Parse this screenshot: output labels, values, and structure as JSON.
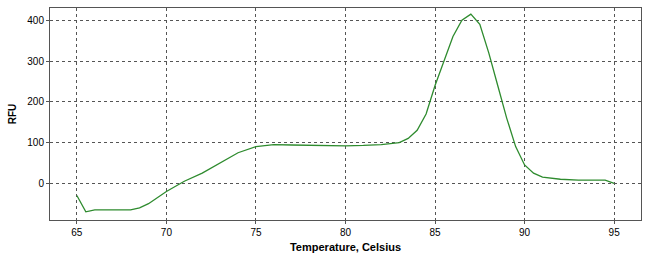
{
  "chart_data": {
    "type": "line",
    "x_label": "Temperature, Celsius",
    "y_label": "RFU",
    "color": "#2e8b2e",
    "x": [
      65,
      65.5,
      66,
      67,
      68,
      68.5,
      69,
      70,
      71,
      72,
      73,
      74,
      75,
      76,
      77,
      78,
      79,
      80,
      81,
      82,
      83,
      83.5,
      84,
      84.5,
      85,
      85.5,
      86,
      86.5,
      87,
      87.5,
      88,
      88.5,
      89,
      89.5,
      90,
      90.5,
      91,
      92,
      93,
      94,
      94.5,
      95
    ],
    "values": [
      -30,
      -70,
      -65,
      -65,
      -65,
      -60,
      -50,
      -20,
      5,
      25,
      50,
      75,
      90,
      95,
      94,
      93,
      92,
      92,
      93,
      95,
      100,
      110,
      130,
      170,
      240,
      300,
      360,
      400,
      415,
      390,
      320,
      240,
      160,
      90,
      45,
      25,
      15,
      10,
      8,
      8,
      8,
      0
    ],
    "xlim": [
      63.5,
      96.5
    ],
    "xticks": [
      65,
      70,
      75,
      80,
      85,
      90,
      95
    ],
    "ylim": [
      -90,
      430
    ],
    "yticks": [
      0,
      100,
      200,
      300,
      400
    ],
    "grid": true
  }
}
